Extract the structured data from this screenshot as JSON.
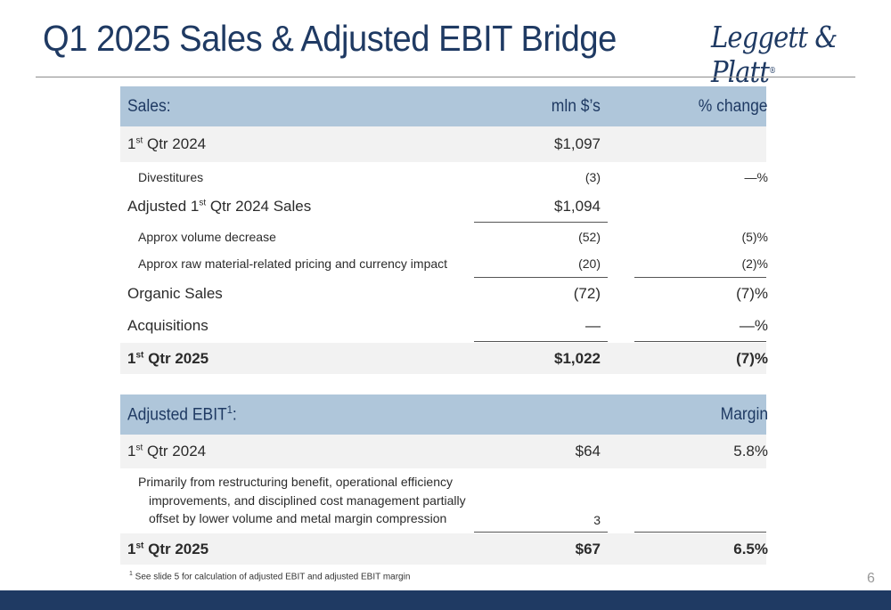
{
  "slide": {
    "title": "Q1 2025 Sales & Adjusted EBIT Bridge",
    "logo": "Leggett & Platt",
    "logo_mark": "®",
    "page_number": "6"
  },
  "sales": {
    "header": {
      "label": "Sales:",
      "col1": "mln $’s",
      "col2": "% change"
    },
    "q1_2024": {
      "pre": "1",
      "sup": "st",
      "post": " Qtr 2024",
      "value": "$1,097"
    },
    "divestitures": {
      "label": "Divestitures",
      "value": "(3)",
      "pct": "—%"
    },
    "adjusted": {
      "pre": "Adjusted 1",
      "sup": "st",
      "post": " Qtr 2024 Sales",
      "value": "$1,094"
    },
    "volume": {
      "label": "Approx volume decrease",
      "value": "(52)",
      "pct": "(5)%"
    },
    "pricing": {
      "label": "Approx raw material-related pricing and currency impact",
      "value": "(20)",
      "pct": "(2)%"
    },
    "organic": {
      "label": "Organic Sales",
      "value": "(72)",
      "pct": "(7)%"
    },
    "acquisitions": {
      "label": "Acquisitions",
      "value": "—",
      "pct": "—%"
    },
    "q1_2025": {
      "pre": "1",
      "sup": "st",
      "post": " Qtr 2025",
      "value": "$1,022",
      "pct": "(7)%"
    }
  },
  "ebit": {
    "header": {
      "label": "Adjusted EBIT",
      "sup": "1",
      "colon": ":",
      "col2": "Margin"
    },
    "q1_2024": {
      "pre": "1",
      "sup": "st",
      "post": " Qtr 2024",
      "value": "$64",
      "margin": "5.8%"
    },
    "driver": {
      "line1": "Primarily from restructuring benefit, operational efficiency",
      "line2": "improvements, and disciplined cost management partially",
      "line3": "offset by lower volume and metal margin compression",
      "value": "3"
    },
    "q1_2025": {
      "pre": "1",
      "sup": "st",
      "post": " Qtr 2025",
      "value": "$67",
      "margin": "6.5%"
    }
  },
  "footnote": {
    "sup": "1",
    "text": " See slide 5 for calculation of adjusted EBIT and adjusted EBIT margin"
  }
}
